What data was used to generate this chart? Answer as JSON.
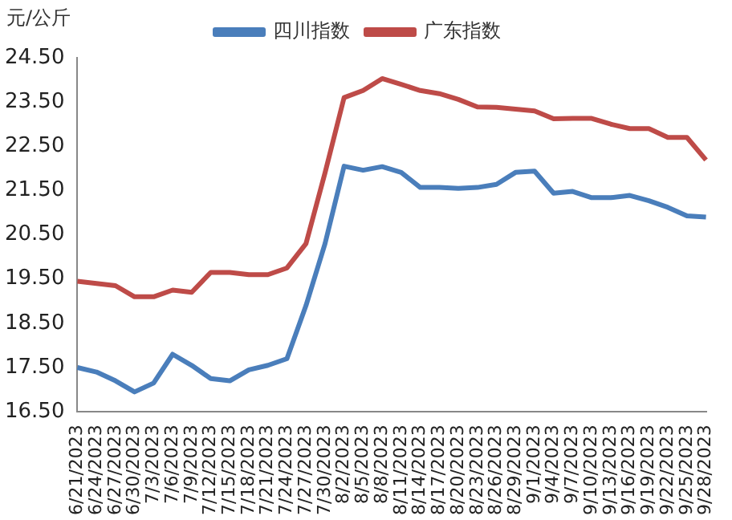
{
  "chart_data": {
    "type": "line",
    "ylabel": "元/公斤",
    "categories": [
      "6/21/2023",
      "6/24/2023",
      "6/27/2023",
      "6/30/2023",
      "7/3/2023",
      "7/6/2023",
      "7/9/2023",
      "7/12/2023",
      "7/15/2023",
      "7/18/2023",
      "7/21/2023",
      "7/24/2023",
      "7/27/2023",
      "7/30/2023",
      "8/2/2023",
      "8/5/2023",
      "8/8/2023",
      "8/11/2023",
      "8/14/2023",
      "8/17/2023",
      "8/20/2023",
      "8/23/2023",
      "8/26/2023",
      "8/29/2023",
      "9/1/2023",
      "9/4/2023",
      "9/7/2023",
      "9/10/2023",
      "9/13/2023",
      "9/16/2023",
      "9/19/2023",
      "9/22/2023",
      "9/25/2023",
      "9/28/2023"
    ],
    "series": [
      {
        "name": "四川指数",
        "color": "#4a7ebb",
        "values": [
          17.5,
          17.4,
          17.2,
          16.95,
          17.15,
          17.8,
          17.55,
          17.25,
          17.2,
          17.45,
          17.55,
          17.7,
          18.9,
          20.3,
          22.05,
          21.96,
          22.04,
          21.91,
          21.57,
          21.57,
          21.55,
          21.57,
          21.64,
          21.91,
          21.94,
          21.44,
          21.48,
          21.34,
          21.34,
          21.39,
          21.27,
          21.12,
          20.93,
          20.9
        ]
      },
      {
        "name": "广东指数",
        "color": "#be4b48",
        "values": [
          19.45,
          19.4,
          19.35,
          19.1,
          19.1,
          19.25,
          19.2,
          19.65,
          19.65,
          19.6,
          19.6,
          19.75,
          20.3,
          21.9,
          23.6,
          23.76,
          24.03,
          23.9,
          23.76,
          23.69,
          23.56,
          23.39,
          23.38,
          23.34,
          23.3,
          23.12,
          23.13,
          23.13,
          23.0,
          22.9,
          22.9,
          22.7,
          22.7,
          22.19
        ]
      }
    ],
    "ylim": [
      16.5,
      24.5
    ],
    "yticks": [
      {
        "value": 16.5,
        "label": "16.50"
      },
      {
        "value": 17.5,
        "label": "17.50"
      },
      {
        "value": 18.5,
        "label": "18.50"
      },
      {
        "value": 19.5,
        "label": "19.50"
      },
      {
        "value": 20.5,
        "label": "20.50"
      },
      {
        "value": 21.5,
        "label": "21.50"
      },
      {
        "value": 22.5,
        "label": "22.50"
      },
      {
        "value": 23.5,
        "label": "23.50"
      },
      {
        "value": 24.5,
        "label": "24.50"
      }
    ],
    "grid": false,
    "legend": "top",
    "marker": "none",
    "line_style": "solid"
  }
}
